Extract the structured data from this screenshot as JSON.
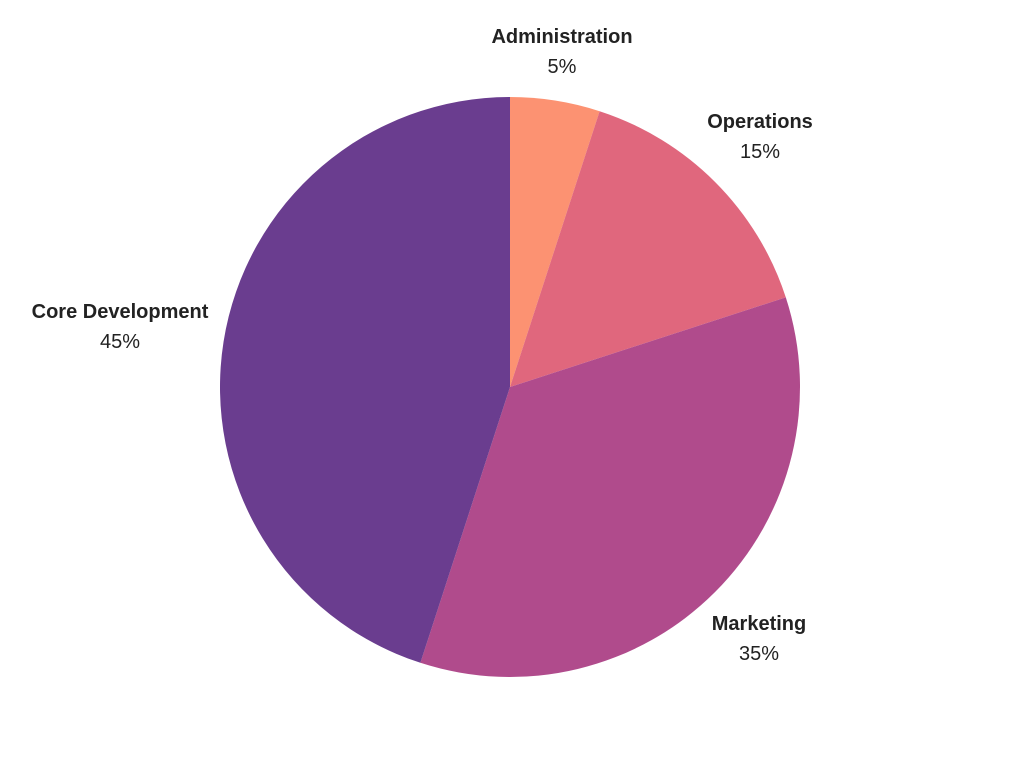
{
  "chart_data": {
    "type": "pie",
    "title": "",
    "slices": [
      {
        "label": "Administration",
        "value": 5,
        "value_label": "5%",
        "color": "#fc9272"
      },
      {
        "label": "Operations",
        "value": 15,
        "value_label": "15%",
        "color": "#e0677d"
      },
      {
        "label": "Marketing",
        "value": 35,
        "value_label": "35%",
        "color": "#b04b8c"
      },
      {
        "label": "Core Development",
        "value": 45,
        "value_label": "45%",
        "color": "#6a3d8f"
      }
    ],
    "start_angle": "12 o'clock",
    "direction": "clockwise",
    "legend": "none"
  }
}
